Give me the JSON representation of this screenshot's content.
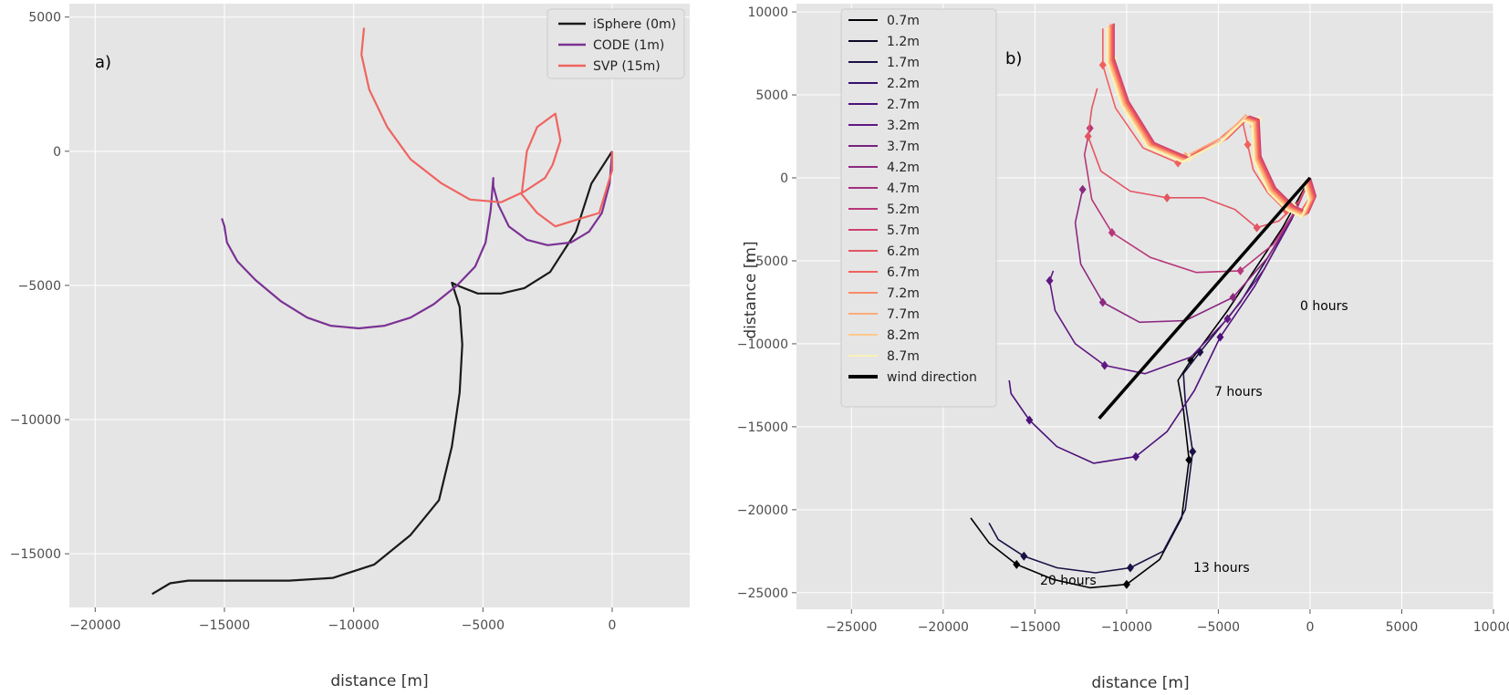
{
  "chart_data": [
    {
      "type": "line",
      "panel_label": "a)",
      "xlabel": "distance [m]",
      "ylabel": "",
      "xlim": [
        -21000,
        3000
      ],
      "ylim": [
        -17000,
        5500
      ],
      "xticks": [
        -20000,
        -15000,
        -10000,
        -5000,
        0
      ],
      "xtick_labels": [
        "−20000",
        "−15000",
        "−10000",
        "−5000",
        "0"
      ],
      "yticks": [
        5000,
        0,
        -5000,
        -10000,
        -15000
      ],
      "ytick_labels": [
        "5000",
        "0",
        "−5000",
        "−10000",
        "−15000"
      ],
      "grid": true,
      "legend_position": "top-right",
      "series": [
        {
          "name": "iSphere (0m)",
          "color": "#1a1a1a",
          "x": [
            0,
            -800,
            -1400,
            -2400,
            -3400,
            -4300,
            -5200,
            -6000,
            -6200,
            -5900,
            -5800,
            -5900,
            -6200,
            -6700,
            -7800,
            -9200,
            -10800,
            -12500,
            -14000,
            -15500,
            -16400,
            -17100,
            -17800
          ],
          "y": [
            0,
            -1200,
            -3000,
            -4500,
            -5100,
            -5300,
            -5300,
            -5000,
            -4900,
            -5800,
            -7200,
            -9000,
            -11000,
            -13000,
            -14300,
            -15400,
            -15900,
            -16000,
            -16000,
            -16000,
            -16000,
            -16100,
            -16500
          ]
        },
        {
          "name": "CODE (1m)",
          "color": "#7b3294",
          "x": [
            0,
            -100,
            -400,
            -900,
            -1600,
            -2500,
            -3300,
            -4000,
            -4400,
            -4600,
            -4600,
            -4700,
            -4900,
            -5300,
            -6000,
            -6900,
            -7800,
            -8800,
            -9800,
            -10900,
            -11800,
            -12800,
            -13800,
            -14500,
            -14900,
            -15000,
            -15100
          ],
          "y": [
            0,
            -1200,
            -2300,
            -3000,
            -3400,
            -3500,
            -3300,
            -2800,
            -2000,
            -1300,
            -1000,
            -2200,
            -3400,
            -4300,
            -5000,
            -5700,
            -6200,
            -6500,
            -6600,
            -6500,
            -6200,
            -5600,
            -4800,
            -4100,
            -3400,
            -2800,
            -2500
          ]
        },
        {
          "name": "SVP (15m)",
          "color": "#ef6461",
          "x": [
            0,
            0,
            -500,
            -1200,
            -2200,
            -2900,
            -3500,
            -3300,
            -2900,
            -2200,
            -2000,
            -2300,
            -2600,
            -3400,
            -4300,
            -5500,
            -6600,
            -7800,
            -8700,
            -9400,
            -9700,
            -9600
          ],
          "y": [
            0,
            -700,
            -2300,
            -2500,
            -2800,
            -2300,
            -1600,
            0,
            900,
            1400,
            400,
            -500,
            -1000,
            -1500,
            -1900,
            -1800,
            -1200,
            -300,
            900,
            2300,
            3600,
            4600
          ]
        }
      ]
    },
    {
      "type": "line",
      "panel_label": "b)",
      "xlabel": "distance [m]",
      "ylabel": "distance [m]",
      "xlim": [
        -28000,
        10000
      ],
      "ylim": [
        -26000,
        10500
      ],
      "xticks": [
        -25000,
        -20000,
        -15000,
        -10000,
        -5000,
        0,
        5000,
        10000
      ],
      "xtick_labels": [
        "−25000",
        "−20000",
        "−15000",
        "−10000",
        "−5000",
        "0",
        "5000",
        "10000"
      ],
      "yticks": [
        10000,
        5000,
        0,
        -5000,
        -10000,
        -15000,
        -20000,
        -25000
      ],
      "ytick_labels": [
        "10000",
        "5000",
        "0",
        "−5000",
        "−10000",
        "−15000",
        "−20000",
        "−25000"
      ],
      "grid": true,
      "legend_position": "top-left",
      "depths": [
        "0.7m",
        "1.2m",
        "1.7m",
        "2.2m",
        "2.7m",
        "3.2m",
        "3.7m",
        "4.2m",
        "4.7m",
        "5.2m",
        "5.7m",
        "6.2m",
        "6.7m",
        "7.2m",
        "7.7m",
        "8.2m",
        "8.7m"
      ],
      "depth_colors": [
        "#000004",
        "#0c0826",
        "#1c1044",
        "#35106b",
        "#4c117a",
        "#611883",
        "#782281",
        "#8c2981",
        "#a2307e",
        "#b8367a",
        "#cf4070",
        "#e25563",
        "#f1605d",
        "#fa8a62",
        "#fcac7a",
        "#fec98d",
        "#fcf2b3"
      ],
      "wind_direction": {
        "name": "wind direction",
        "color": "#000000",
        "x": [
          0,
          -11500
        ],
        "y": [
          0,
          -14500
        ]
      },
      "time_markers": [
        "0 hours",
        "7 hours",
        "13 hours",
        "20 hours"
      ],
      "trajectories": [
        {
          "x": [
            0,
            -1500,
            -4500,
            -6500,
            -7200,
            -6900,
            -6600,
            -7000,
            -8200,
            -10000,
            -12000,
            -14000,
            -16000,
            -17500,
            -18500
          ],
          "y": [
            0,
            -3000,
            -8000,
            -11000,
            -12200,
            -14000,
            -17000,
            -20500,
            -23000,
            -24500,
            -24700,
            -24200,
            -23300,
            -22000,
            -20500
          ]
        },
        {
          "x": [
            0,
            -1200,
            -3800,
            -6000,
            -6900,
            -6800,
            -6400,
            -6800,
            -8000,
            -9800,
            -11700,
            -13800,
            -15600,
            -17000,
            -17500
          ],
          "y": [
            0,
            -2800,
            -7500,
            -10500,
            -11800,
            -13500,
            -16500,
            -20000,
            -22500,
            -23500,
            -23800,
            -23500,
            -22800,
            -21800,
            -20800
          ]
        },
        {
          "x": [
            0,
            -1000,
            -3000,
            -4900,
            -6300,
            -7800,
            -9500,
            -11800,
            -13800,
            -15300,
            -16300,
            -16400
          ],
          "y": [
            0,
            -2500,
            -6500,
            -9600,
            -12800,
            -15300,
            -16800,
            -17200,
            -16200,
            -14600,
            -13000,
            -12200
          ]
        },
        {
          "x": [
            0,
            -900,
            -2500,
            -4500,
            -6500,
            -9000,
            -11200,
            -12800,
            -13900,
            -14200,
            -14000
          ],
          "y": [
            0,
            -2200,
            -5500,
            -8500,
            -10800,
            -11800,
            -11300,
            -10000,
            -8000,
            -6200,
            -5600
          ]
        },
        {
          "x": [
            0,
            -800,
            -2300,
            -4200,
            -6800,
            -9300,
            -11300,
            -12500,
            -12800,
            -12400
          ],
          "y": [
            0,
            -2000,
            -4800,
            -7200,
            -8600,
            -8700,
            -7500,
            -5200,
            -2700,
            -700
          ]
        },
        {
          "x": [
            0,
            -700,
            -2000,
            -3800,
            -6200,
            -8700,
            -10800,
            -11900,
            -12300,
            -12000
          ],
          "y": [
            0,
            -1800,
            -4000,
            -5600,
            -5700,
            -4800,
            -3300,
            -1300,
            1400,
            3000
          ]
        },
        {
          "x": [
            0,
            -600,
            -1700,
            -2900,
            -4100,
            -5800,
            -7800,
            -9800,
            -11400,
            -12100,
            -11900,
            -11600
          ],
          "y": [
            0,
            -1400,
            -2600,
            -3000,
            -1900,
            -1200,
            -1200,
            -800,
            400,
            2500,
            4200,
            5400
          ]
        },
        {
          "x": [
            0,
            100,
            -500,
            -1300,
            -2300,
            -3100,
            -3400,
            -3700,
            -5000,
            -7200,
            -9100,
            -10600,
            -11300,
            -11300
          ],
          "y": [
            0,
            -1000,
            -2000,
            -2000,
            -900,
            500,
            2000,
            3500,
            2300,
            900,
            1800,
            4200,
            6800,
            9000
          ]
        },
        {
          "x": [
            0,
            200,
            -200,
            -1100,
            -2100,
            -2900,
            -3100,
            -3500,
            -4700,
            -6800,
            -8700,
            -10100,
            -10900,
            -10900
          ],
          "y": [
            0,
            -1000,
            -2200,
            -1800,
            -800,
            1100,
            3100,
            3800,
            2500,
            1300,
            2200,
            4700,
            7300,
            9300
          ]
        },
        {
          "x": [
            0,
            300,
            -100,
            -900,
            -1900,
            -2700,
            -2800,
            -3300,
            -4500,
            -6600,
            -8500,
            -9900,
            -10700,
            -10700
          ],
          "y": [
            0,
            -1100,
            -2100,
            -1700,
            -600,
            1300,
            3500,
            3700,
            2400,
            1200,
            2100,
            4600,
            7200,
            9300
          ]
        }
      ]
    }
  ]
}
